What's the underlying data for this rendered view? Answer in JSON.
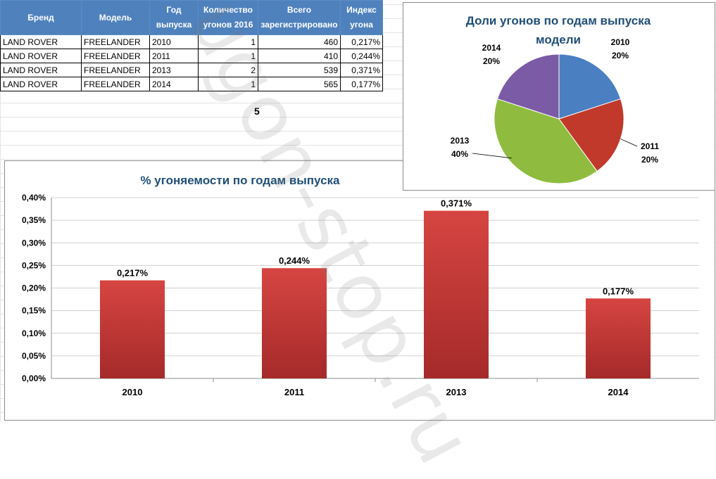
{
  "table": {
    "headers": [
      "Бренд",
      "Модель",
      "Год выпуска",
      "Количество угонов 2016",
      "Всего зарегистрировано",
      "Индекс угона"
    ],
    "rows": [
      [
        "LAND ROVER",
        "FREELANDER",
        "2010",
        "1",
        "460",
        "0,217%"
      ],
      [
        "LAND ROVER",
        "FREELANDER",
        "2011",
        "1",
        "410",
        "0,244%"
      ],
      [
        "LAND ROVER",
        "FREELANDER",
        "2013",
        "2",
        "539",
        "0,371%"
      ],
      [
        "LAND ROVER",
        "FREELANDER",
        "2014",
        "1",
        "565",
        "0,177%"
      ]
    ]
  },
  "stray_cell": "5",
  "watermark": "ugon-stop.ru",
  "chart_data": [
    {
      "type": "bar",
      "title": "% угоняемости  по годам  выпуска",
      "categories": [
        "2010",
        "2011",
        "2013",
        "2014"
      ],
      "values": [
        0.217,
        0.244,
        0.371,
        0.177
      ],
      "data_labels": [
        "0,217%",
        "0,244%",
        "0,371%",
        "0,177%"
      ],
      "ylim": [
        0,
        0.4
      ],
      "yticks": [
        "0,00%",
        "0,05%",
        "0,10%",
        "0,15%",
        "0,20%",
        "0,25%",
        "0,30%",
        "0,35%",
        "0,40%"
      ],
      "grid": true,
      "bar_color": "#c0392b"
    },
    {
      "type": "pie",
      "title": "Доли угонов  по годам  выпуска модели",
      "slices": [
        {
          "label": "2010",
          "value": 20,
          "pct": "20%",
          "color": "#4a7fc1"
        },
        {
          "label": "2011",
          "value": 20,
          "pct": "20%",
          "color": "#c0392b"
        },
        {
          "label": "2013",
          "value": 40,
          "pct": "40%",
          "color": "#8fbc3f"
        },
        {
          "label": "2014",
          "value": 20,
          "pct": "20%",
          "color": "#7b5aa6"
        }
      ]
    }
  ]
}
